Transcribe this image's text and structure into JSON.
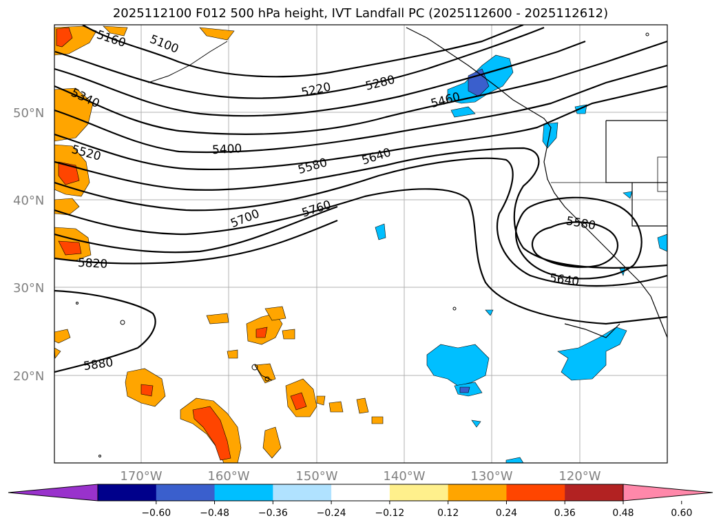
{
  "title": "2025112100 F012 500 hPa height, IVT Landfall PC (2025112600 - 2025112612)",
  "lat_labels": [
    "50°N",
    "40°N",
    "30°N",
    "20°N"
  ],
  "lon_labels": [
    "170°W",
    "160°W",
    "150°W",
    "140°W",
    "130°W",
    "120°W"
  ],
  "contour_labels": [
    {
      "text": "5160",
      "contour": 5160
    },
    {
      "text": "5100",
      "contour": 5100
    },
    {
      "text": "5220",
      "contour": 5220
    },
    {
      "text": "5280",
      "contour": 5280
    },
    {
      "text": "5340",
      "contour": 5340
    },
    {
      "text": "5460",
      "contour": 5460
    },
    {
      "text": "5400",
      "contour": 5400
    },
    {
      "text": "5520",
      "contour": 5520
    },
    {
      "text": "5580",
      "contour": 5580
    },
    {
      "text": "5640",
      "contour": 5640
    },
    {
      "text": "5700",
      "contour": 5700
    },
    {
      "text": "5760",
      "contour": 5760
    },
    {
      "text": "5820",
      "contour": 5820
    },
    {
      "text": "5880",
      "contour": 5880
    },
    {
      "text": "5580",
      "contour": 5580
    },
    {
      "text": "5640",
      "contour": 5640
    }
  ],
  "colorbar": {
    "ticks": [
      "−0.60",
      "−0.48",
      "−0.36",
      "−0.24",
      "−0.12",
      "0.12",
      "0.24",
      "0.36",
      "0.48",
      "0.60"
    ],
    "colors": [
      "#9932cc",
      "#00008b",
      "#3a5fcd",
      "#00bfff",
      "#b0e2ff",
      "#ffffff",
      "#fff08c",
      "#ffa500",
      "#ff4500",
      "#b22222",
      "#ff88aa"
    ]
  }
}
